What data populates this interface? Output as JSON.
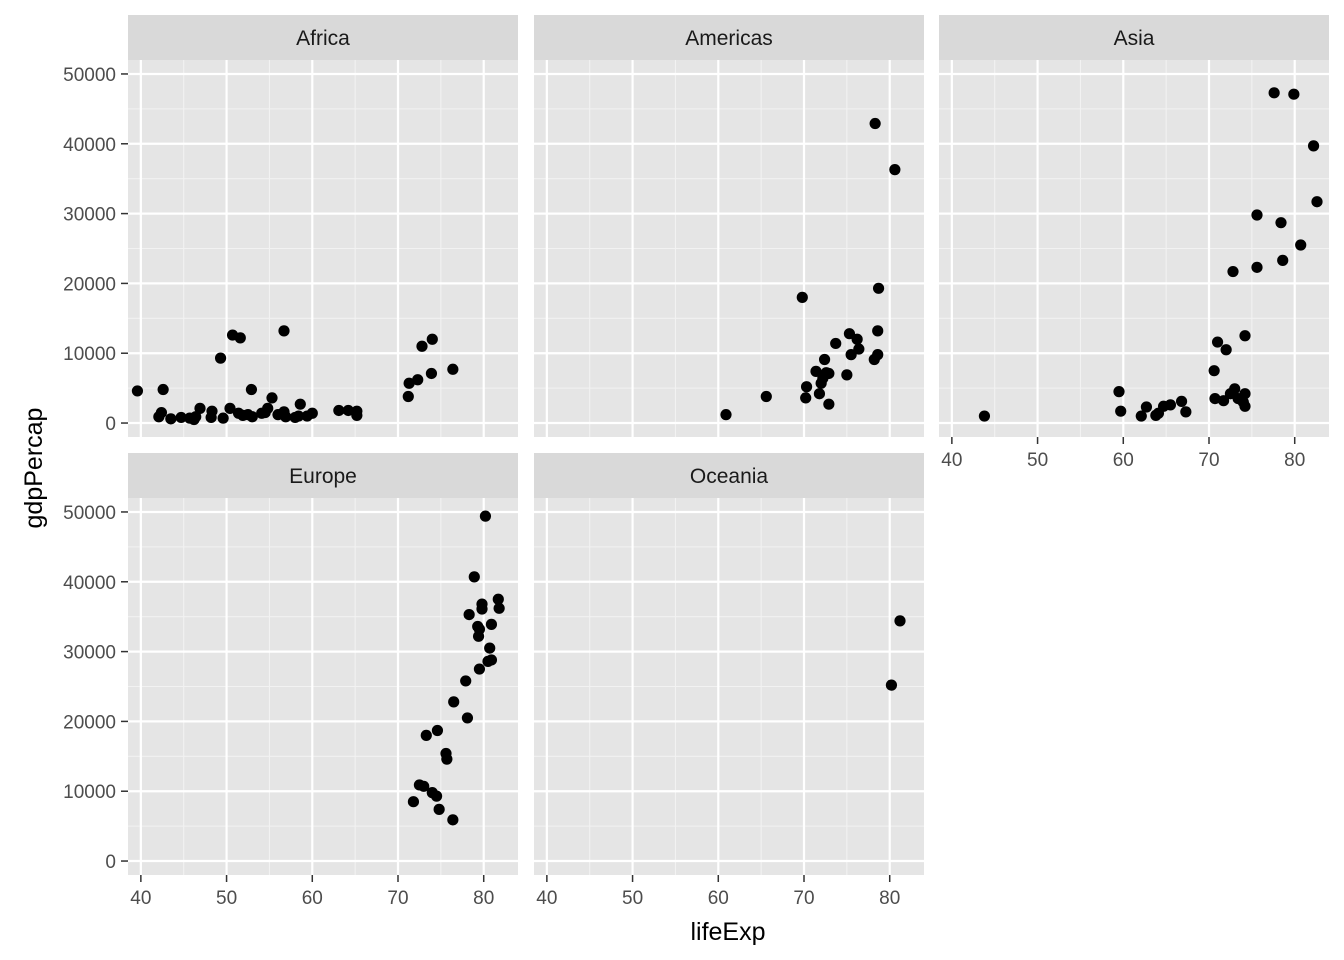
{
  "colors": {
    "panel_background": "#e5e5e5",
    "grid_major": "#ffffff",
    "grid_minor": "#f2f2f2",
    "strip_background": "#d9d9d9",
    "point": "#000000",
    "tick_text": "#4d4d4d"
  },
  "chart_data": {
    "type": "scatter",
    "facet_layout": "wrap, 3 columns",
    "xlabel": "lifeExp",
    "ylabel": "gdpPercap",
    "xlim": [
      38.5,
      84
    ],
    "ylim": [
      -2000,
      52000
    ],
    "x_ticks": [
      40,
      50,
      60,
      70,
      80
    ],
    "x_tick_labels": [
      "40",
      "50",
      "60",
      "70",
      "80"
    ],
    "y_ticks": [
      0,
      10000,
      20000,
      30000,
      40000,
      50000
    ],
    "y_tick_labels": [
      "0",
      "10000",
      "20000",
      "30000",
      "40000",
      "50000"
    ],
    "grid": true,
    "panels": [
      {
        "label": "Africa",
        "points": [
          [
            39.6,
            4600
          ],
          [
            42.1,
            900
          ],
          [
            42.4,
            1500
          ],
          [
            42.6,
            4800
          ],
          [
            43.5,
            600
          ],
          [
            44.7,
            800
          ],
          [
            45.7,
            700
          ],
          [
            46.2,
            500
          ],
          [
            46.4,
            900
          ],
          [
            46.9,
            2100
          ],
          [
            48.2,
            800
          ],
          [
            48.3,
            1700
          ],
          [
            49.3,
            9300
          ],
          [
            49.6,
            700
          ],
          [
            50.4,
            2100
          ],
          [
            50.7,
            12600
          ],
          [
            51.4,
            1400
          ],
          [
            51.6,
            12200
          ],
          [
            51.9,
            1100
          ],
          [
            52.5,
            1200
          ],
          [
            52.9,
            4800
          ],
          [
            53.0,
            900
          ],
          [
            54.1,
            1400
          ],
          [
            54.5,
            1500
          ],
          [
            54.8,
            2100
          ],
          [
            55.3,
            3600
          ],
          [
            56.0,
            1200
          ],
          [
            56.7,
            1600
          ],
          [
            56.7,
            13200
          ],
          [
            56.9,
            900
          ],
          [
            58.0,
            800
          ],
          [
            58.4,
            1000
          ],
          [
            58.6,
            2700
          ],
          [
            59.4,
            1000
          ],
          [
            60.0,
            1400
          ],
          [
            63.1,
            1800
          ],
          [
            64.2,
            1800
          ],
          [
            65.2,
            1100
          ],
          [
            65.2,
            1700
          ],
          [
            71.2,
            3800
          ],
          [
            71.3,
            5700
          ],
          [
            72.3,
            6200
          ],
          [
            72.8,
            11000
          ],
          [
            73.9,
            7100
          ],
          [
            74.0,
            12000
          ],
          [
            76.4,
            7700
          ]
        ]
      },
      {
        "label": "Americas",
        "points": [
          [
            60.9,
            1200
          ],
          [
            65.6,
            3800
          ],
          [
            69.8,
            18000
          ],
          [
            70.2,
            3600
          ],
          [
            70.3,
            5200
          ],
          [
            71.4,
            7400
          ],
          [
            71.8,
            4200
          ],
          [
            72.0,
            5700
          ],
          [
            72.2,
            6400
          ],
          [
            72.4,
            9100
          ],
          [
            72.6,
            7200
          ],
          [
            72.9,
            2700
          ],
          [
            72.9,
            7100
          ],
          [
            73.7,
            11400
          ],
          [
            75.0,
            6900
          ],
          [
            75.3,
            12800
          ],
          [
            75.5,
            9800
          ],
          [
            76.2,
            12000
          ],
          [
            76.4,
            10600
          ],
          [
            78.2,
            9100
          ],
          [
            78.3,
            42900
          ],
          [
            78.6,
            9800
          ],
          [
            78.6,
            13200
          ],
          [
            78.7,
            19300
          ],
          [
            80.6,
            36300
          ]
        ]
      },
      {
        "label": "Asia",
        "points": [
          [
            43.8,
            1000
          ],
          [
            59.5,
            4500
          ],
          [
            59.7,
            1700
          ],
          [
            62.1,
            1000
          ],
          [
            62.7,
            2300
          ],
          [
            63.8,
            1100
          ],
          [
            64.1,
            1400
          ],
          [
            64.7,
            2400
          ],
          [
            65.5,
            2600
          ],
          [
            66.8,
            3100
          ],
          [
            67.3,
            1600
          ],
          [
            70.6,
            7500
          ],
          [
            70.7,
            3500
          ],
          [
            71.0,
            11600
          ],
          [
            71.7,
            3200
          ],
          [
            72.0,
            10500
          ],
          [
            72.5,
            4200
          ],
          [
            72.8,
            21700
          ],
          [
            73.0,
            4900
          ],
          [
            73.4,
            3500
          ],
          [
            74.0,
            3000
          ],
          [
            74.2,
            12500
          ],
          [
            74.2,
            4200
          ],
          [
            74.2,
            2400
          ],
          [
            75.6,
            22300
          ],
          [
            75.6,
            29800
          ],
          [
            77.6,
            47300
          ],
          [
            78.4,
            28700
          ],
          [
            78.6,
            23300
          ],
          [
            79.9,
            47100
          ],
          [
            80.7,
            25500
          ],
          [
            82.2,
            39700
          ],
          [
            82.6,
            31700
          ]
        ]
      },
      {
        "label": "Europe",
        "points": [
          [
            71.8,
            8500
          ],
          [
            72.5,
            10900
          ],
          [
            73.0,
            10700
          ],
          [
            73.3,
            18000
          ],
          [
            74.0,
            9800
          ],
          [
            74.5,
            9300
          ],
          [
            74.6,
            18700
          ],
          [
            74.8,
            7400
          ],
          [
            75.6,
            15400
          ],
          [
            75.7,
            14600
          ],
          [
            76.4,
            5900
          ],
          [
            76.5,
            22800
          ],
          [
            77.9,
            25800
          ],
          [
            78.1,
            20500
          ],
          [
            78.3,
            35300
          ],
          [
            78.9,
            40700
          ],
          [
            79.3,
            33600
          ],
          [
            79.4,
            32200
          ],
          [
            79.5,
            33200
          ],
          [
            79.5,
            27500
          ],
          [
            79.8,
            36800
          ],
          [
            79.8,
            36100
          ],
          [
            80.2,
            49400
          ],
          [
            80.5,
            28600
          ],
          [
            80.7,
            30500
          ],
          [
            80.9,
            33900
          ],
          [
            80.9,
            28800
          ],
          [
            81.7,
            37500
          ],
          [
            81.8,
            36200
          ]
        ]
      },
      {
        "label": "Oceania",
        "points": [
          [
            80.2,
            25200
          ],
          [
            81.2,
            34400
          ]
        ]
      }
    ]
  }
}
